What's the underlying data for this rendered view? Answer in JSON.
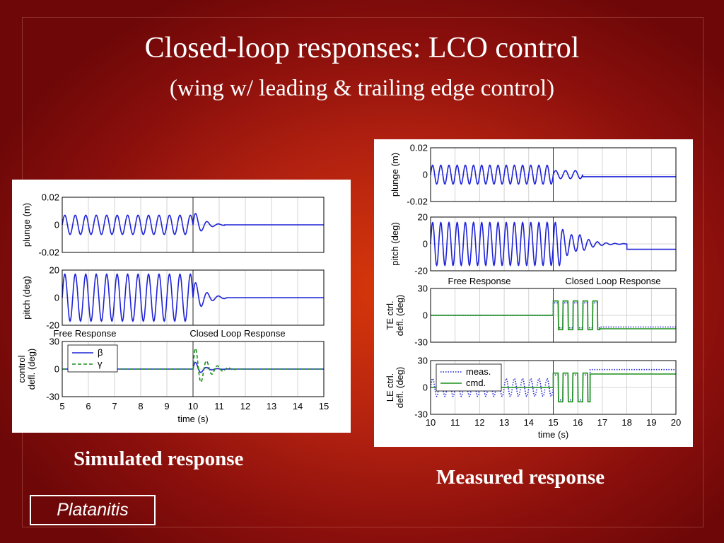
{
  "slide": {
    "title": "Closed-loop responses:  LCO control",
    "subtitle": "(wing w/ leading & trailing edge control)",
    "caption_left": "Simulated response",
    "caption_right": "Measured response",
    "credit": "Platanitis",
    "colors": {
      "blue": "#1f23d6",
      "green": "#1a8f1a"
    }
  },
  "chart_data": [
    {
      "type": "line",
      "name": "simulated",
      "xlabel": "time (s)",
      "xlim": [
        5,
        15
      ],
      "xticks": [
        "5",
        "6",
        "7",
        "8",
        "9",
        "10",
        "11",
        "12",
        "13",
        "14",
        "15"
      ],
      "annotations": [
        "Free Response",
        "Closed Loop Response"
      ],
      "control_on_time": 10,
      "subplots": [
        {
          "ylabel": "plunge (m)",
          "ylim": [
            -0.02,
            0.02
          ],
          "yticks": [
            "0.02",
            "0",
            "-0.02"
          ],
          "series": [
            {
              "color": "#1f23d6",
              "style": "solid",
              "segments": [
                {
                  "t0": 5,
                  "t1": 10,
                  "kind": "sine",
                  "amp": 0.007,
                  "freq": 2.5
                },
                {
                  "t0": 10,
                  "t1": 11.2,
                  "kind": "decay",
                  "amp": 0.011,
                  "freq": 2.3,
                  "tau": 0.35
                },
                {
                  "t0": 11.2,
                  "t1": 15,
                  "kind": "const",
                  "value": 0
                }
              ]
            }
          ]
        },
        {
          "ylabel": "pitch (deg)",
          "ylim": [
            -20,
            20
          ],
          "yticks": [
            "20",
            "0",
            "-20"
          ],
          "series": [
            {
              "color": "#1f23d6",
              "style": "solid",
              "segments": [
                {
                  "t0": 5,
                  "t1": 10,
                  "kind": "sine",
                  "amp": 17,
                  "freq": 2.5
                },
                {
                  "t0": 10,
                  "t1": 11.3,
                  "kind": "decay",
                  "amp": 14,
                  "freq": 2.3,
                  "tau": 0.4
                },
                {
                  "t0": 11.3,
                  "t1": 15,
                  "kind": "const",
                  "value": 0
                }
              ]
            }
          ]
        },
        {
          "ylabel": "control\ndefl. (deg)",
          "ylim": [
            -30,
            30
          ],
          "yticks": [
            "30",
            "0",
            "-30"
          ],
          "legend": {
            "position": "top-left",
            "entries": [
              "β",
              "γ"
            ]
          },
          "series": [
            {
              "name": "β",
              "color": "#1f23d6",
              "style": "solid",
              "segments": [
                {
                  "t0": 5,
                  "t1": 10,
                  "kind": "const",
                  "value": 0
                },
                {
                  "t0": 10,
                  "t1": 11.4,
                  "kind": "decay",
                  "amp": 10,
                  "freq": 2.4,
                  "tau": 0.3
                },
                {
                  "t0": 11.4,
                  "t1": 15,
                  "kind": "const",
                  "value": 0
                }
              ]
            },
            {
              "name": "γ",
              "color": "#1a8f1a",
              "style": "dashed",
              "segments": [
                {
                  "t0": 5,
                  "t1": 10,
                  "kind": "const",
                  "value": 0
                },
                {
                  "t0": 10,
                  "t1": 11.6,
                  "kind": "decay",
                  "amp": 28,
                  "freq": 2.4,
                  "tau": 0.45
                },
                {
                  "t0": 11.6,
                  "t1": 15,
                  "kind": "const",
                  "value": 0
                }
              ]
            }
          ]
        }
      ]
    },
    {
      "type": "line",
      "name": "measured",
      "xlabel": "time (s)",
      "xlim": [
        10,
        20
      ],
      "xticks": [
        "10",
        "11",
        "12",
        "13",
        "14",
        "15",
        "16",
        "17",
        "18",
        "19",
        "20"
      ],
      "annotations": [
        "Free Response",
        "Closed Loop Response"
      ],
      "control_on_time": 15,
      "subplots": [
        {
          "ylabel": "plunge (m)",
          "ylim": [
            -0.02,
            0.02
          ],
          "yticks": [
            "0.02",
            "0",
            "-0.02"
          ],
          "series": [
            {
              "color": "#1f23d6",
              "style": "solid",
              "segments": [
                {
                  "t0": 10,
                  "t1": 15,
                  "kind": "sine",
                  "amp": 0.007,
                  "freq": 3
                },
                {
                  "t0": 15,
                  "t1": 16.2,
                  "kind": "sine",
                  "amp": 0.003,
                  "freq": 2.5
                },
                {
                  "t0": 16.2,
                  "t1": 20,
                  "kind": "const",
                  "value": -0.0015
                }
              ]
            }
          ]
        },
        {
          "ylabel": "pitch (deg)",
          "ylim": [
            -20,
            20
          ],
          "yticks": [
            "20",
            "0",
            "-20"
          ],
          "series": [
            {
              "color": "#1f23d6",
              "style": "solid",
              "segments": [
                {
                  "t0": 10,
                  "t1": 15.3,
                  "kind": "sine",
                  "amp": 16,
                  "freq": 3
                },
                {
                  "t0": 15.3,
                  "t1": 16,
                  "kind": "decay",
                  "amp": 12,
                  "freq": 2.8,
                  "tau": 0.8
                },
                {
                  "t0": 16,
                  "t1": 18,
                  "kind": "decay",
                  "amp": 8,
                  "freq": 2.8,
                  "tau": 0.5
                },
                {
                  "t0": 18,
                  "t1": 20,
                  "kind": "const",
                  "value": -4
                }
              ]
            }
          ]
        },
        {
          "ylabel": "TE ctrl.\ndefl. (deg)",
          "ylim": [
            -30,
            30
          ],
          "yticks": [
            "30",
            "0",
            "-30"
          ],
          "series": [
            {
              "color": "#1f23d6",
              "style": "dotted",
              "segments": [
                {
                  "t0": 10,
                  "t1": 15,
                  "kind": "const",
                  "value": 0
                },
                {
                  "t0": 15,
                  "t1": 16.9,
                  "kind": "square",
                  "amp": 14,
                  "freq": 2.5
                },
                {
                  "t0": 16.9,
                  "t1": 20,
                  "kind": "const",
                  "value": -13
                }
              ]
            },
            {
              "color": "#1a8f1a",
              "style": "solid",
              "segments": [
                {
                  "t0": 10,
                  "t1": 15,
                  "kind": "const",
                  "value": 0
                },
                {
                  "t0": 15,
                  "t1": 16.9,
                  "kind": "square",
                  "amp": 16,
                  "freq": 2.5
                },
                {
                  "t0": 16.9,
                  "t1": 20,
                  "kind": "const",
                  "value": -15
                }
              ]
            }
          ]
        },
        {
          "ylabel": "LE ctrl.\ndefl. (deg)",
          "ylim": [
            -30,
            30
          ],
          "yticks": [
            "30",
            "0",
            "-30"
          ],
          "legend": {
            "position": "top-left",
            "entries": [
              "meas.",
              "cmd."
            ]
          },
          "series": [
            {
              "name": "meas.",
              "color": "#1f23d6",
              "style": "dotted",
              "segments": [
                {
                  "t0": 10,
                  "t1": 15,
                  "kind": "sine",
                  "amp": 10,
                  "freq": 3
                },
                {
                  "t0": 15,
                  "t1": 16.5,
                  "kind": "square",
                  "amp": 14,
                  "freq": 2.5
                },
                {
                  "t0": 16.5,
                  "t1": 20,
                  "kind": "const",
                  "value": 20
                }
              ]
            },
            {
              "name": "cmd.",
              "color": "#1a8f1a",
              "style": "solid",
              "segments": [
                {
                  "t0": 10,
                  "t1": 15,
                  "kind": "const",
                  "value": 0
                },
                {
                  "t0": 15,
                  "t1": 16.5,
                  "kind": "square",
                  "amp": 16,
                  "freq": 2.5
                },
                {
                  "t0": 16.5,
                  "t1": 20,
                  "kind": "const",
                  "value": 15
                }
              ]
            }
          ]
        }
      ]
    }
  ]
}
